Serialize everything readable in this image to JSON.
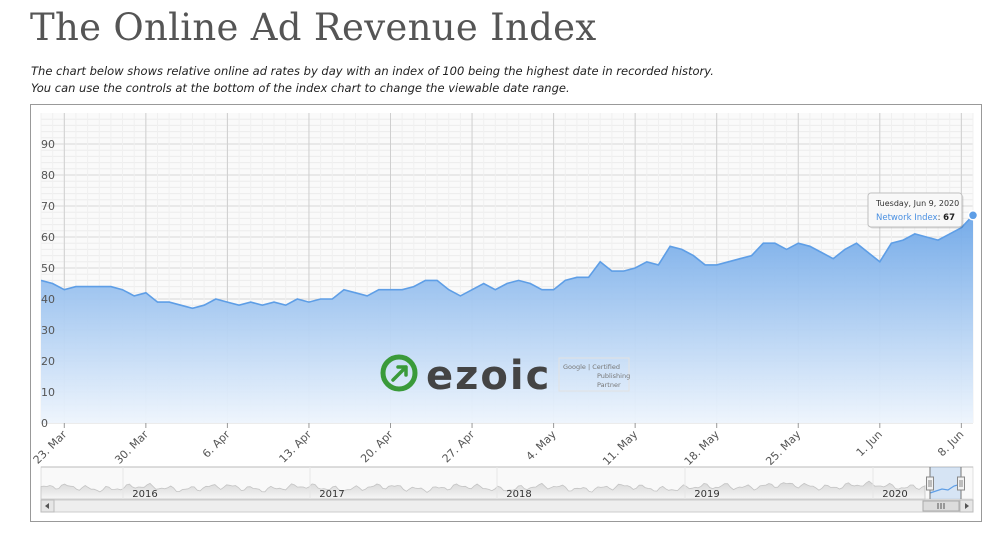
{
  "page": {
    "title": "The Online Ad Revenue Index",
    "intro_line1": "The chart below shows relative online ad rates by day with an index of 100 being the highest date in recorded history.",
    "intro_line2": "You can use the controls at the bottom of the index chart to change the viewable date range."
  },
  "colors": {
    "area_top": "#6ea7e8",
    "area_bottom": "#eef5fd",
    "line": "#5e9ee6",
    "grid": "#dcdcdc",
    "tooltip_series": "#4a90e2",
    "logo_green": "#3a9a3a",
    "logo_text": "#444444"
  },
  "logo": {
    "icon": "ezoic-logo-icon",
    "wordmark": "ezoic",
    "badge_line1": "Google | Certified",
    "badge_line2": "Publishing",
    "badge_line3": "Partner"
  },
  "tooltip": {
    "date": "Tuesday, Jun 9, 2020",
    "series_label": "Network Index",
    "value": "67"
  },
  "navigator": {
    "year_labels": [
      "2016",
      "2017",
      "2018",
      "2019",
      "2020"
    ],
    "scroll_left_icon": "arrow-left-icon",
    "scroll_right_icon": "arrow-right-icon",
    "grip_icon": "scrollbar-grip-icon"
  },
  "chart_data": {
    "type": "area",
    "title": "",
    "xlabel": "",
    "ylabel": "",
    "ylim": [
      0,
      100
    ],
    "yticks": [
      0,
      10,
      20,
      30,
      40,
      50,
      60,
      70,
      80,
      90
    ],
    "xtick_labels": [
      "23. Mar",
      "30. Mar",
      "6. Apr",
      "13. Apr",
      "20. Apr",
      "27. Apr",
      "4. May",
      "11. May",
      "18. May",
      "25. May",
      "1. Jun",
      "8. Jun"
    ],
    "grid": true,
    "legend": "none",
    "series": [
      {
        "name": "Network Index",
        "x": [
          "2020-03-21",
          "2020-03-22",
          "2020-03-23",
          "2020-03-24",
          "2020-03-25",
          "2020-03-26",
          "2020-03-27",
          "2020-03-28",
          "2020-03-29",
          "2020-03-30",
          "2020-03-31",
          "2020-04-01",
          "2020-04-02",
          "2020-04-03",
          "2020-04-04",
          "2020-04-05",
          "2020-04-06",
          "2020-04-07",
          "2020-04-08",
          "2020-04-09",
          "2020-04-10",
          "2020-04-11",
          "2020-04-12",
          "2020-04-13",
          "2020-04-14",
          "2020-04-15",
          "2020-04-16",
          "2020-04-17",
          "2020-04-18",
          "2020-04-19",
          "2020-04-20",
          "2020-04-21",
          "2020-04-22",
          "2020-04-23",
          "2020-04-24",
          "2020-04-25",
          "2020-04-26",
          "2020-04-27",
          "2020-04-28",
          "2020-04-29",
          "2020-04-30",
          "2020-05-01",
          "2020-05-02",
          "2020-05-03",
          "2020-05-04",
          "2020-05-05",
          "2020-05-06",
          "2020-05-07",
          "2020-05-08",
          "2020-05-09",
          "2020-05-10",
          "2020-05-11",
          "2020-05-12",
          "2020-05-13",
          "2020-05-14",
          "2020-05-15",
          "2020-05-16",
          "2020-05-17",
          "2020-05-18",
          "2020-05-19",
          "2020-05-20",
          "2020-05-21",
          "2020-05-22",
          "2020-05-23",
          "2020-05-24",
          "2020-05-25",
          "2020-05-26",
          "2020-05-27",
          "2020-05-28",
          "2020-05-29",
          "2020-05-30",
          "2020-05-31",
          "2020-06-01",
          "2020-06-02",
          "2020-06-03",
          "2020-06-04",
          "2020-06-05",
          "2020-06-06",
          "2020-06-07",
          "2020-06-08",
          "2020-06-09"
        ],
        "y": [
          46,
          45,
          43,
          44,
          44,
          44,
          44,
          43,
          41,
          42,
          39,
          39,
          38,
          37,
          38,
          40,
          39,
          38,
          39,
          38,
          39,
          38,
          40,
          39,
          40,
          40,
          43,
          42,
          41,
          43,
          43,
          43,
          44,
          46,
          46,
          43,
          41,
          43,
          45,
          43,
          45,
          46,
          45,
          43,
          43,
          46,
          47,
          47,
          52,
          49,
          49,
          50,
          52,
          51,
          57,
          56,
          54,
          51,
          51,
          52,
          53,
          54,
          58,
          58,
          56,
          58,
          57,
          55,
          53,
          56,
          58,
          55,
          52,
          58,
          59,
          61,
          60,
          59,
          61,
          63,
          67
        ]
      }
    ]
  }
}
